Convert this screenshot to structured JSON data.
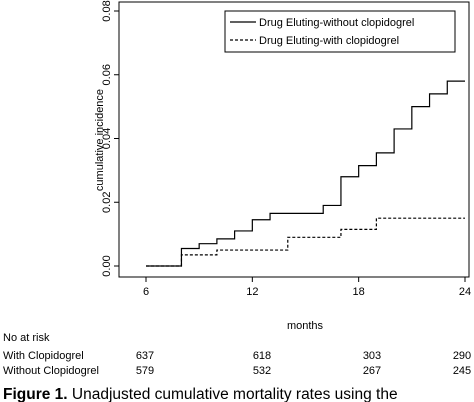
{
  "chart_data": {
    "type": "line",
    "step": true,
    "xlabel": "months",
    "ylabel": "cumulative incidence",
    "xlim": [
      6,
      24
    ],
    "ylim": [
      0,
      0.08
    ],
    "xticks": [
      6,
      12,
      18,
      24
    ],
    "yticks": [
      0.0,
      0.02,
      0.04,
      0.06,
      0.08
    ],
    "xtick_labels": [
      "6",
      "12",
      "18",
      "24"
    ],
    "ytick_labels": [
      "0.00",
      "0.02",
      "0.04",
      "0.06",
      "0.08"
    ],
    "legend_position": "top-right",
    "series": [
      {
        "name": "Drug Eluting-without clopidogrel",
        "line_style": "solid",
        "x": [
          6,
          8,
          9,
          10,
          11,
          12,
          13,
          16,
          17,
          18,
          19,
          20,
          21,
          22,
          23,
          24
        ],
        "y": [
          0,
          0.0055,
          0.007,
          0.0085,
          0.011,
          0.0145,
          0.0165,
          0.019,
          0.028,
          0.0315,
          0.0355,
          0.043,
          0.05,
          0.054,
          0.058,
          0.058
        ]
      },
      {
        "name": "Drug Eluting-with clopidogrel",
        "line_style": "dashed",
        "x": [
          6,
          8,
          10,
          14,
          17,
          19,
          24
        ],
        "y": [
          0,
          0.0035,
          0.005,
          0.009,
          0.0115,
          0.015,
          0.015
        ]
      }
    ]
  },
  "risk_table": {
    "title": "No at risk",
    "rows": [
      {
        "label": "With Clopidogrel",
        "values": [
          "637",
          "618",
          "303",
          "290"
        ]
      },
      {
        "label": "Without Clopidogrel",
        "values": [
          "579",
          "532",
          "267",
          "245"
        ]
      }
    ]
  },
  "caption": {
    "bold": "Figure 1.",
    "text": " Unadjusted cumulative mortality rates using the"
  }
}
